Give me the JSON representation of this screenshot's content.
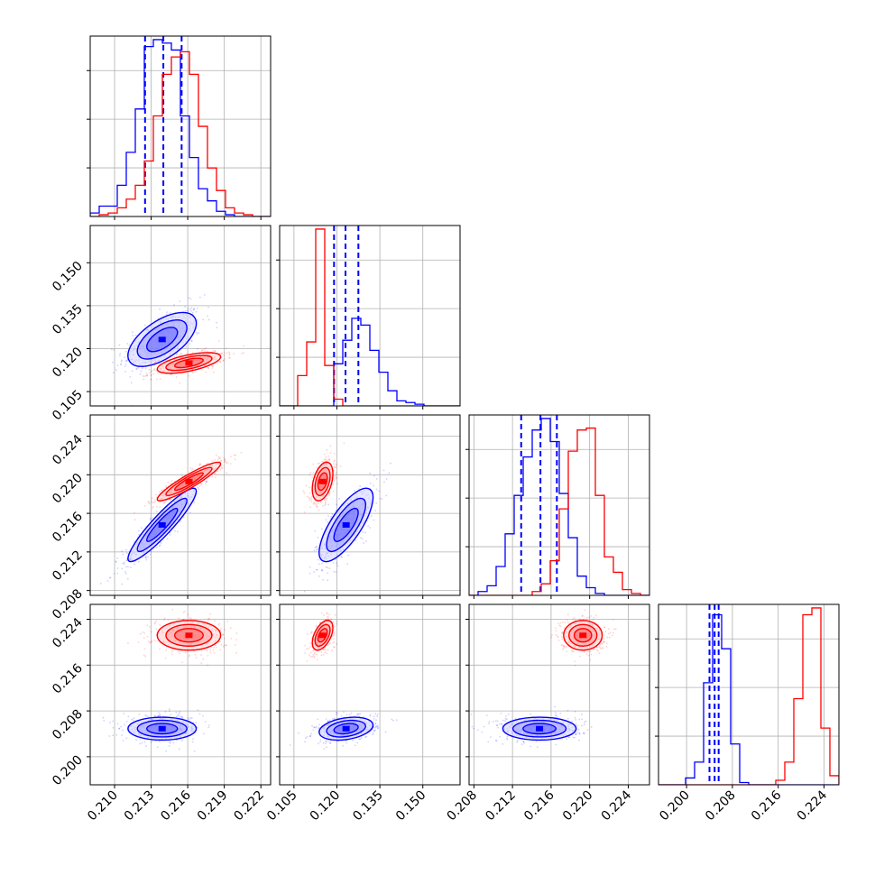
{
  "chart_data": {
    "type": "corner",
    "title": "",
    "grid": true,
    "colors": {
      "series_a": "#0000ff",
      "series_b": "#ff0000",
      "grid": "#b0b0b0",
      "frame": "#000000"
    },
    "parameters": [
      {
        "index": 0,
        "range": [
          0.208,
          0.2228
        ],
        "ticks": [
          "0.210",
          "0.213",
          "0.216",
          "0.219",
          "0.222"
        ]
      },
      {
        "index": 1,
        "range": [
          0.1,
          0.163
        ],
        "ticks": [
          "0.105",
          "0.120",
          "0.135",
          "0.150"
        ]
      },
      {
        "index": 2,
        "range": [
          0.2075,
          0.2262
        ],
        "ticks": [
          "0.208",
          "0.212",
          "0.216",
          "0.220",
          "0.224"
        ]
      },
      {
        "index": 3,
        "range": [
          0.1951,
          0.2266
        ],
        "ticks": [
          "0.200",
          "0.208",
          "0.216",
          "0.224"
        ]
      }
    ],
    "series": [
      {
        "name": "",
        "color": "#0000ff",
        "mean": [
          0.2139,
          0.1232,
          0.2148,
          0.2049
        ],
        "sd": [
          0.0014,
          0.0047,
          0.0019,
          0.001
        ],
        "corr": [
          [
            1,
            0.6,
            0.92,
            0
          ],
          [
            0.6,
            1,
            0.75,
            0.3
          ],
          [
            0.92,
            0.75,
            1,
            0
          ],
          [
            0,
            0.3,
            0,
            1
          ]
        ],
        "quantiles": [
          [
            0.2125,
            0.214,
            0.2155
          ],
          [
            0.119,
            0.123,
            0.1275
          ],
          [
            0.2129,
            0.2149,
            0.2166
          ],
          [
            0.204,
            0.2049,
            0.2056
          ]
        ],
        "histograms": [
          {
            "edges": [
              0.208,
              0.2228
            ],
            "counts": [
              2,
              6,
              6,
              18,
              37,
              62,
              98,
              102,
              100,
              96,
              58,
              34,
              16,
              9,
              3,
              1,
              0,
              0,
              0,
              0
            ]
          },
          {
            "edges": [
              0.1,
              0.163
            ],
            "counts": [
              0,
              0,
              0,
              0,
              0,
              0,
              25,
              39,
              52,
              48,
              33,
              20,
              9,
              3,
              2,
              1,
              0,
              0,
              0,
              0
            ]
          },
          {
            "edges": [
              0.2075,
              0.2262
            ],
            "counts": [
              0,
              2,
              5,
              15,
              32,
              52,
              72,
              86,
              92,
              80,
              53,
              30,
              10,
              4,
              1,
              0,
              0,
              0,
              0,
              0
            ]
          },
          {
            "edges": [
              0.1951,
              0.2266
            ],
            "counts": [
              0,
              0,
              0,
              3,
              10,
              45,
              75,
              60,
              18,
              1,
              0,
              0,
              0,
              0,
              0,
              0,
              0,
              0,
              0,
              0
            ]
          }
        ]
      },
      {
        "name": "",
        "color": "#ff0000",
        "mean": [
          0.2161,
          0.115,
          0.2193,
          0.2212
        ],
        "sd": [
          0.0013,
          0.0018,
          0.001,
          0.0013
        ],
        "corr": [
          [
            1,
            0.6,
            0.92,
            0
          ],
          [
            0.6,
            1,
            0.4,
            0.5
          ],
          [
            0.92,
            0.4,
            1,
            0
          ],
          [
            0,
            0.5,
            0,
            1
          ]
        ],
        "quantiles": null,
        "histograms": [
          {
            "edges": [
              0.208,
              0.2228
            ],
            "counts": [
              0,
              1,
              2,
              5,
              10,
              18,
              32,
              58,
              82,
              92,
              95,
              82,
              52,
              28,
              15,
              5,
              2,
              1,
              0,
              0
            ]
          },
          {
            "edges": [
              0.1,
              0.163
            ],
            "counts": [
              0,
              0,
              18,
              38,
              105,
              24,
              4,
              0,
              0,
              0,
              0,
              0,
              0,
              0,
              0,
              0,
              0,
              0,
              0,
              0
            ]
          },
          {
            "edges": [
              0.2075,
              0.2262
            ],
            "counts": [
              0,
              0,
              0,
              0,
              0,
              0,
              0,
              2,
              6,
              18,
              45,
              75,
              86,
              87,
              52,
              20,
              12,
              3,
              1,
              0
            ]
          },
          {
            "edges": [
              0.1951,
              0.2266
            ],
            "counts": [
              0,
              0,
              0,
              0,
              0,
              0,
              0,
              0,
              0,
              0,
              0,
              0,
              0,
              2,
              10,
              38,
              75,
              78,
              25,
              4
            ]
          }
        ]
      }
    ]
  }
}
